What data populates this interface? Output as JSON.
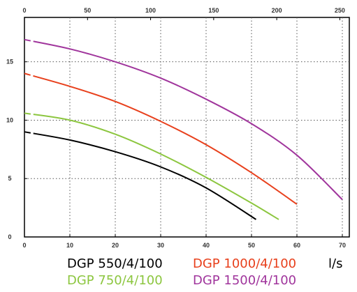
{
  "chart_data": {
    "type": "line",
    "x_bottom": {
      "min": 0,
      "max": 70,
      "ticks": [
        0,
        10,
        20,
        30,
        40,
        50,
        60,
        70
      ],
      "unit": "l/s"
    },
    "x_top": {
      "min": 0,
      "max": 252,
      "ticks": [
        0,
        50,
        100,
        150,
        200,
        250
      ]
    },
    "y": {
      "min": 0,
      "max": 18.8,
      "ticks": [
        0,
        5,
        10,
        15
      ]
    },
    "grid": true,
    "legend_position": "bottom",
    "series": [
      {
        "name": "DGP 550/4/100",
        "color": "#000000",
        "x": [
          0,
          10,
          20,
          30,
          40,
          51
        ],
        "y": [
          9.0,
          8.3,
          7.3,
          6.0,
          4.2,
          1.5
        ]
      },
      {
        "name": "DGP 750/4/100",
        "color": "#8cc63f",
        "x": [
          0,
          10,
          20,
          30,
          40,
          50,
          56
        ],
        "y": [
          10.6,
          10.0,
          8.8,
          7.1,
          5.1,
          2.9,
          1.5
        ]
      },
      {
        "name": "DGP 1000/4/100",
        "color": "#e8401c",
        "x": [
          0,
          10,
          20,
          30,
          40,
          50,
          60
        ],
        "y": [
          14.0,
          12.9,
          11.6,
          9.9,
          7.9,
          5.5,
          2.8
        ]
      },
      {
        "name": "DGP 1500/4/100",
        "color": "#a0359c",
        "x": [
          0,
          10,
          20,
          30,
          40,
          50,
          60,
          70
        ],
        "y": [
          16.9,
          16.1,
          15.0,
          13.6,
          11.8,
          9.7,
          7.0,
          3.2
        ]
      }
    ]
  },
  "legend": {
    "label_550": "DGP 550/4/100",
    "label_1000": "DGP 1000/4/100",
    "label_750": "DGP 750/4/100",
    "label_1500": "DGP 1500/4/100",
    "unit_label": "l/s"
  }
}
